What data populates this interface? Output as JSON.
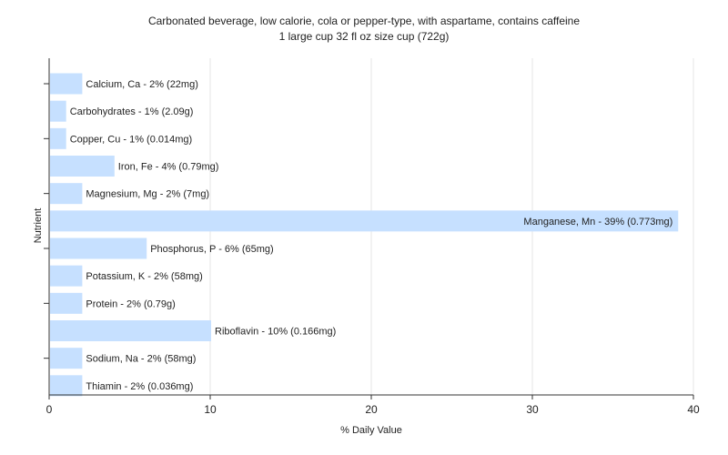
{
  "chart_data": {
    "type": "bar",
    "orientation": "horizontal",
    "title": "Carbonated beverage, low calorie, cola or pepper-type, with aspartame, contains caffeine",
    "subtitle": "1 large cup 32 fl oz size cup (722g)",
    "xlabel": "% Daily Value",
    "ylabel": "Nutrient",
    "xlim": [
      0,
      40
    ],
    "xticks": [
      0,
      10,
      20,
      30,
      40
    ],
    "grid": true,
    "bar_color": "#c6e0ff",
    "categories": [
      "Calcium, Ca",
      "Carbohydrates",
      "Copper, Cu",
      "Iron, Fe",
      "Magnesium, Mg",
      "Manganese, Mn",
      "Phosphorus, P",
      "Potassium, K",
      "Protein",
      "Riboflavin",
      "Sodium, Na",
      "Thiamin"
    ],
    "values": [
      2,
      1,
      1,
      4,
      2,
      39,
      6,
      2,
      2,
      10,
      2,
      2
    ],
    "labels": [
      "Calcium, Ca - 2% (22mg)",
      "Carbohydrates - 1% (2.09g)",
      "Copper, Cu - 1% (0.014mg)",
      "Iron, Fe - 4% (0.79mg)",
      "Magnesium, Mg - 2% (7mg)",
      "Manganese, Mn - 39% (0.773mg)",
      "Phosphorus, P - 6% (65mg)",
      "Potassium, K - 2% (58mg)",
      "Protein - 2% (0.79g)",
      "Riboflavin - 10% (0.166mg)",
      "Sodium, Na - 2% (58mg)",
      "Thiamin - 2% (0.036mg)"
    ]
  }
}
